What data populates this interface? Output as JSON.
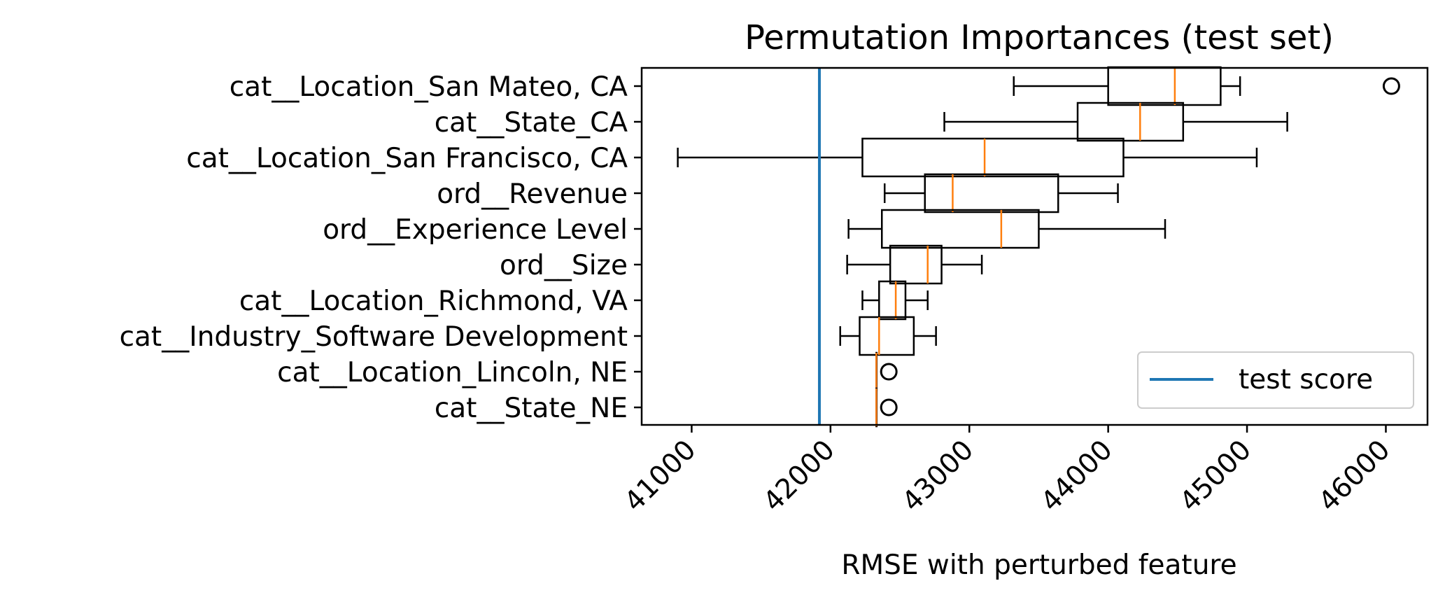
{
  "chart_data": {
    "type": "boxplot",
    "orientation": "horizontal",
    "title": "Permutation Importances (test set)",
    "xlabel": "RMSE with perturbed feature",
    "xlim": [
      40640,
      46300
    ],
    "xticks": [
      41000,
      42000,
      43000,
      44000,
      45000,
      46000
    ],
    "xtick_labels": [
      "41000",
      "42000",
      "43000",
      "44000",
      "45000",
      "46000"
    ],
    "xtick_rotation": 45,
    "categories": [
      "cat__Location_San Mateo, CA",
      "cat__State_CA",
      "cat__Location_San Francisco, CA",
      "ord__Revenue",
      "ord__Experience Level",
      "ord__Size",
      "cat__Location_Richmond, VA",
      "cat__Industry_Software Development",
      "cat__Location_Lincoln, NE",
      "cat__State_NE"
    ],
    "boxes": [
      {
        "whisker_low": 43320,
        "q1": 44000,
        "median": 44480,
        "q3": 44810,
        "whisker_high": 44950,
        "outliers": [
          46040
        ]
      },
      {
        "whisker_low": 42820,
        "q1": 43780,
        "median": 44230,
        "q3": 44540,
        "whisker_high": 45290,
        "outliers": []
      },
      {
        "whisker_low": 40900,
        "q1": 42230,
        "median": 43110,
        "q3": 44110,
        "whisker_high": 45070,
        "outliers": []
      },
      {
        "whisker_low": 42390,
        "q1": 42680,
        "median": 42880,
        "q3": 43640,
        "whisker_high": 44070,
        "outliers": []
      },
      {
        "whisker_low": 42130,
        "q1": 42370,
        "median": 43230,
        "q3": 43500,
        "whisker_high": 44410,
        "outliers": []
      },
      {
        "whisker_low": 42120,
        "q1": 42430,
        "median": 42700,
        "q3": 42800,
        "whisker_high": 43090,
        "outliers": []
      },
      {
        "whisker_low": 42230,
        "q1": 42350,
        "median": 42470,
        "q3": 42540,
        "whisker_high": 42700,
        "outliers": []
      },
      {
        "whisker_low": 42070,
        "q1": 42210,
        "median": 42350,
        "q3": 42600,
        "whisker_high": 42760,
        "outliers": []
      },
      {
        "whisker_low": 42330,
        "q1": 42330,
        "median": 42330,
        "q3": 42330,
        "whisker_high": 42330,
        "outliers": [
          42420
        ]
      },
      {
        "whisker_low": 42330,
        "q1": 42330,
        "median": 42330,
        "q3": 42330,
        "whisker_high": 42330,
        "outliers": [
          42420
        ]
      }
    ],
    "reference_line": {
      "name": "test score",
      "x": 41920,
      "color": "#1f77b4"
    },
    "legend": {
      "entries": [
        "test score"
      ],
      "position": "lower-right"
    },
    "grid": false,
    "colors": {
      "box": "#000000",
      "median": "#ff7f0e",
      "reference": "#1f77b4"
    }
  }
}
